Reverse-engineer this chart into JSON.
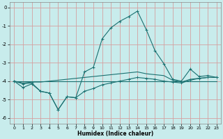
{
  "xlabel": "Humidex (Indice chaleur)",
  "bg_color": "#c8ecec",
  "grid_color": "#d4a0a0",
  "line_color": "#1a7070",
  "xlim": [
    -0.5,
    23.5
  ],
  "ylim": [
    -6.3,
    0.3
  ],
  "xticks": [
    0,
    1,
    2,
    3,
    4,
    5,
    6,
    7,
    8,
    9,
    10,
    11,
    12,
    13,
    14,
    15,
    16,
    17,
    18,
    19,
    20,
    21,
    22,
    23
  ],
  "yticks": [
    0,
    -1,
    -2,
    -3,
    -4,
    -5,
    -6
  ],
  "curve1_x": [
    0,
    1,
    2,
    3,
    4,
    5,
    6,
    7,
    8,
    9,
    10,
    11,
    12,
    13,
    14,
    15,
    16,
    17,
    18,
    19,
    20,
    21,
    22,
    23
  ],
  "curve1_y": [
    -4.0,
    -4.35,
    -4.15,
    -4.55,
    -4.65,
    -5.55,
    -4.85,
    -4.9,
    -3.5,
    -3.25,
    -1.7,
    -1.1,
    -0.75,
    -0.5,
    -0.2,
    -1.2,
    -2.35,
    -3.05,
    -3.9,
    -4.0,
    -3.35,
    -3.75,
    -3.7,
    -3.8
  ],
  "curve2_x": [
    0,
    1,
    2,
    3,
    4,
    5,
    6,
    7,
    8,
    9,
    10,
    11,
    12,
    13,
    14,
    15,
    16,
    17,
    18,
    19,
    20,
    21,
    22,
    23
  ],
  "curve2_y": [
    -4.0,
    -4.0,
    -4.0,
    -4.0,
    -4.0,
    -4.0,
    -4.0,
    -4.0,
    -4.0,
    -4.0,
    -4.0,
    -4.0,
    -4.0,
    -4.0,
    -4.0,
    -4.0,
    -4.0,
    -4.0,
    -4.0,
    -4.0,
    -4.0,
    -4.0,
    -4.0,
    -4.0
  ],
  "curve3_x": [
    0,
    1,
    2,
    3,
    4,
    5,
    6,
    7,
    8,
    9,
    10,
    11,
    12,
    13,
    14,
    15,
    16,
    17,
    18,
    19,
    20,
    21,
    22,
    23
  ],
  "curve3_y": [
    -4.0,
    -4.15,
    -4.1,
    -4.55,
    -4.65,
    -5.55,
    -4.85,
    -4.9,
    -4.55,
    -4.4,
    -4.2,
    -4.1,
    -4.0,
    -3.9,
    -3.8,
    -3.85,
    -3.9,
    -4.0,
    -4.05,
    -4.1,
    -3.95,
    -3.85,
    -3.8,
    -3.8
  ],
  "curve4_x": [
    0,
    1,
    2,
    3,
    4,
    5,
    6,
    7,
    8,
    9,
    10,
    11,
    12,
    13,
    14,
    15,
    16,
    17,
    18,
    19,
    20,
    21,
    22,
    23
  ],
  "curve4_y": [
    -4.0,
    -4.1,
    -4.05,
    -4.05,
    -4.0,
    -3.95,
    -3.9,
    -3.85,
    -3.8,
    -3.75,
    -3.7,
    -3.65,
    -3.6,
    -3.55,
    -3.5,
    -3.6,
    -3.65,
    -3.7,
    -3.95,
    -4.05,
    -3.9,
    -3.85,
    -3.8,
    -3.8
  ]
}
